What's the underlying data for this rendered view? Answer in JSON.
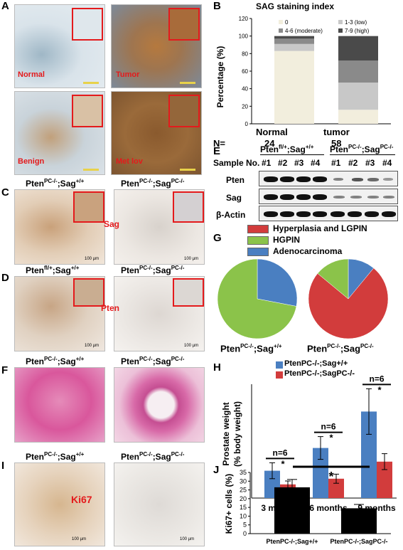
{
  "panels": {
    "A": {
      "letter": "A",
      "labels": [
        "Normal",
        "Tumor",
        "Benign",
        "Met lov"
      ]
    },
    "B": {
      "letter": "B",
      "title": "SAG staining index",
      "ylabel": "Percentage (%)",
      "n_label": "N=",
      "legend": [
        "0",
        "1-3 (low)",
        "4-6 (moderate)",
        "7-9 (high)"
      ],
      "colors": [
        "#f2eedd",
        "#c8c8c8",
        "#8a8a8a",
        "#4a4a4a"
      ]
    },
    "C": {
      "letter": "C",
      "left_title": {
        "base": "Pten",
        "sup1": "PC-/-",
        "mid": ";Sag",
        "sup2": "+/+"
      },
      "right_title": {
        "base": "Pten",
        "sup1": "PC-/-",
        "mid": ";Sag",
        "sup2": "PC-/-"
      },
      "stain_label": "Sag",
      "scale_text": "100 µm"
    },
    "D": {
      "letter": "D",
      "left_title": {
        "base": "Pten",
        "sup1": "fl/+",
        "mid": ";Sag",
        "sup2": "+/+"
      },
      "right_title": {
        "base": "Pten",
        "sup1": "PC-/-",
        "mid": ";Sag",
        "sup2": "PC-/-"
      },
      "stain_label": "Pten",
      "scale_text": "100 µm"
    },
    "E": {
      "letter": "E",
      "header_left": {
        "base": "Pten",
        "sup1": "fl/+",
        "mid": ";Sag",
        "sup2": "+/+"
      },
      "header_right": {
        "base": "Pten",
        "sup1": "PC-/-",
        "mid": ";Sag",
        "sup2": "PC-/-"
      },
      "sample_label": "Sample No.",
      "samples": [
        "#1",
        "#2",
        "#3",
        "#4",
        "#1",
        "#2",
        "#3",
        "#4"
      ],
      "rows": [
        "Pten",
        "Sag",
        "β-Actin"
      ]
    },
    "F": {
      "letter": "F",
      "left_title": {
        "base": "Pten",
        "sup1": "PC-/-",
        "mid": ";Sag",
        "sup2": "+/+"
      },
      "right_title": {
        "base": "Pten",
        "sup1": "PC-/-",
        "mid": ";Sag",
        "sup2": "PC-/-"
      }
    },
    "G": {
      "letter": "G",
      "legend": [
        "Hyperplasia and LGPIN",
        "HGPIN",
        "Adenocarcinoma"
      ],
      "left_title": {
        "base": "Pten",
        "sup1": "PC-/-",
        "mid": ";Sag",
        "sup2": "+/+"
      },
      "right_title": {
        "base": "Pten",
        "sup1": "PC-/-",
        "mid": ";Sag",
        "sup2": "PC-/-"
      }
    },
    "H": {
      "letter": "H",
      "legend": [
        "PtenPC-/-;Sag+/+",
        "PtenPC-/-;SagPC-/-"
      ],
      "ylabel1": "Prostate weight",
      "ylabel2": "(% body weight)",
      "n_labels": [
        "n=6",
        "n=6",
        "n=6"
      ],
      "sig": "*"
    },
    "I": {
      "letter": "I",
      "left_title": {
        "base": "Pten",
        "sup1": "PC-/-",
        "mid": ";Sag",
        "sup2": "+/+"
      },
      "right_title": {
        "base": "Pten",
        "sup1": "PC-/-",
        "mid": ";Sag",
        "sup2": "PC-/-"
      },
      "stain_label": "Ki67",
      "scale_text": "100 µm"
    },
    "J": {
      "letter": "J",
      "ylabel": "Ki67+ cells (%)",
      "sig": "*"
    }
  },
  "chart_data": [
    {
      "panel": "B",
      "type": "bar",
      "stacked": true,
      "title": "SAG staining index",
      "ylabel": "Percentage (%)",
      "categories": [
        "Normal",
        "tumor"
      ],
      "n": [
        "24",
        "58"
      ],
      "ylim": [
        0,
        120
      ],
      "yticks": [
        "0",
        "20",
        "40",
        "60",
        "80",
        "100",
        "120"
      ],
      "series": [
        {
          "name": "0",
          "values": [
            83,
            16
          ]
        },
        {
          "name": "1-3 (low)",
          "values": [
            8,
            31
          ]
        },
        {
          "name": "4-6 (moderate)",
          "values": [
            6,
            25
          ]
        },
        {
          "name": "7-9 (high)",
          "values": [
            3,
            28
          ]
        }
      ]
    },
    {
      "panel": "G",
      "type": "pie",
      "categories": [
        "Hyperplasia and LGPIN",
        "HGPIN",
        "Adenocarcinoma"
      ],
      "colors": [
        "#d23c3c",
        "#8bc34a",
        "#4a7fc1"
      ],
      "pies": [
        {
          "values": [
            0,
            72,
            28
          ]
        },
        {
          "values": [
            75,
            14,
            11
          ]
        }
      ]
    },
    {
      "panel": "H",
      "type": "bar",
      "categories": [
        "3 months",
        "6 months",
        "9 months"
      ],
      "ylim": [
        0,
        5
      ],
      "series": [
        {
          "name": "PtenPC-/-;Sag+/+",
          "color": "#4a7fc1",
          "values": [
            1.2,
            2.2,
            3.8
          ],
          "errors": [
            0.35,
            0.5,
            1.0
          ]
        },
        {
          "name": "PtenPC-/-;SagPC-/-",
          "color": "#d23c3c",
          "values": [
            0.6,
            0.85,
            1.6
          ],
          "errors": [
            0.15,
            0.2,
            0.35
          ]
        }
      ]
    },
    {
      "panel": "J",
      "type": "bar",
      "ylabel": "Ki67+ cells (%)",
      "categories": [
        "PtenPC-/-;Sag+/+",
        "PtenPC-/-;SagPC-/-"
      ],
      "ylim": [
        0,
        35
      ],
      "yticks": [
        "0",
        "5",
        "10",
        "15",
        "20",
        "25",
        "30",
        "35"
      ],
      "values": [
        26.5,
        14.5
      ],
      "errors": [
        4.5,
        2.2
      ],
      "color": "#000000"
    }
  ]
}
